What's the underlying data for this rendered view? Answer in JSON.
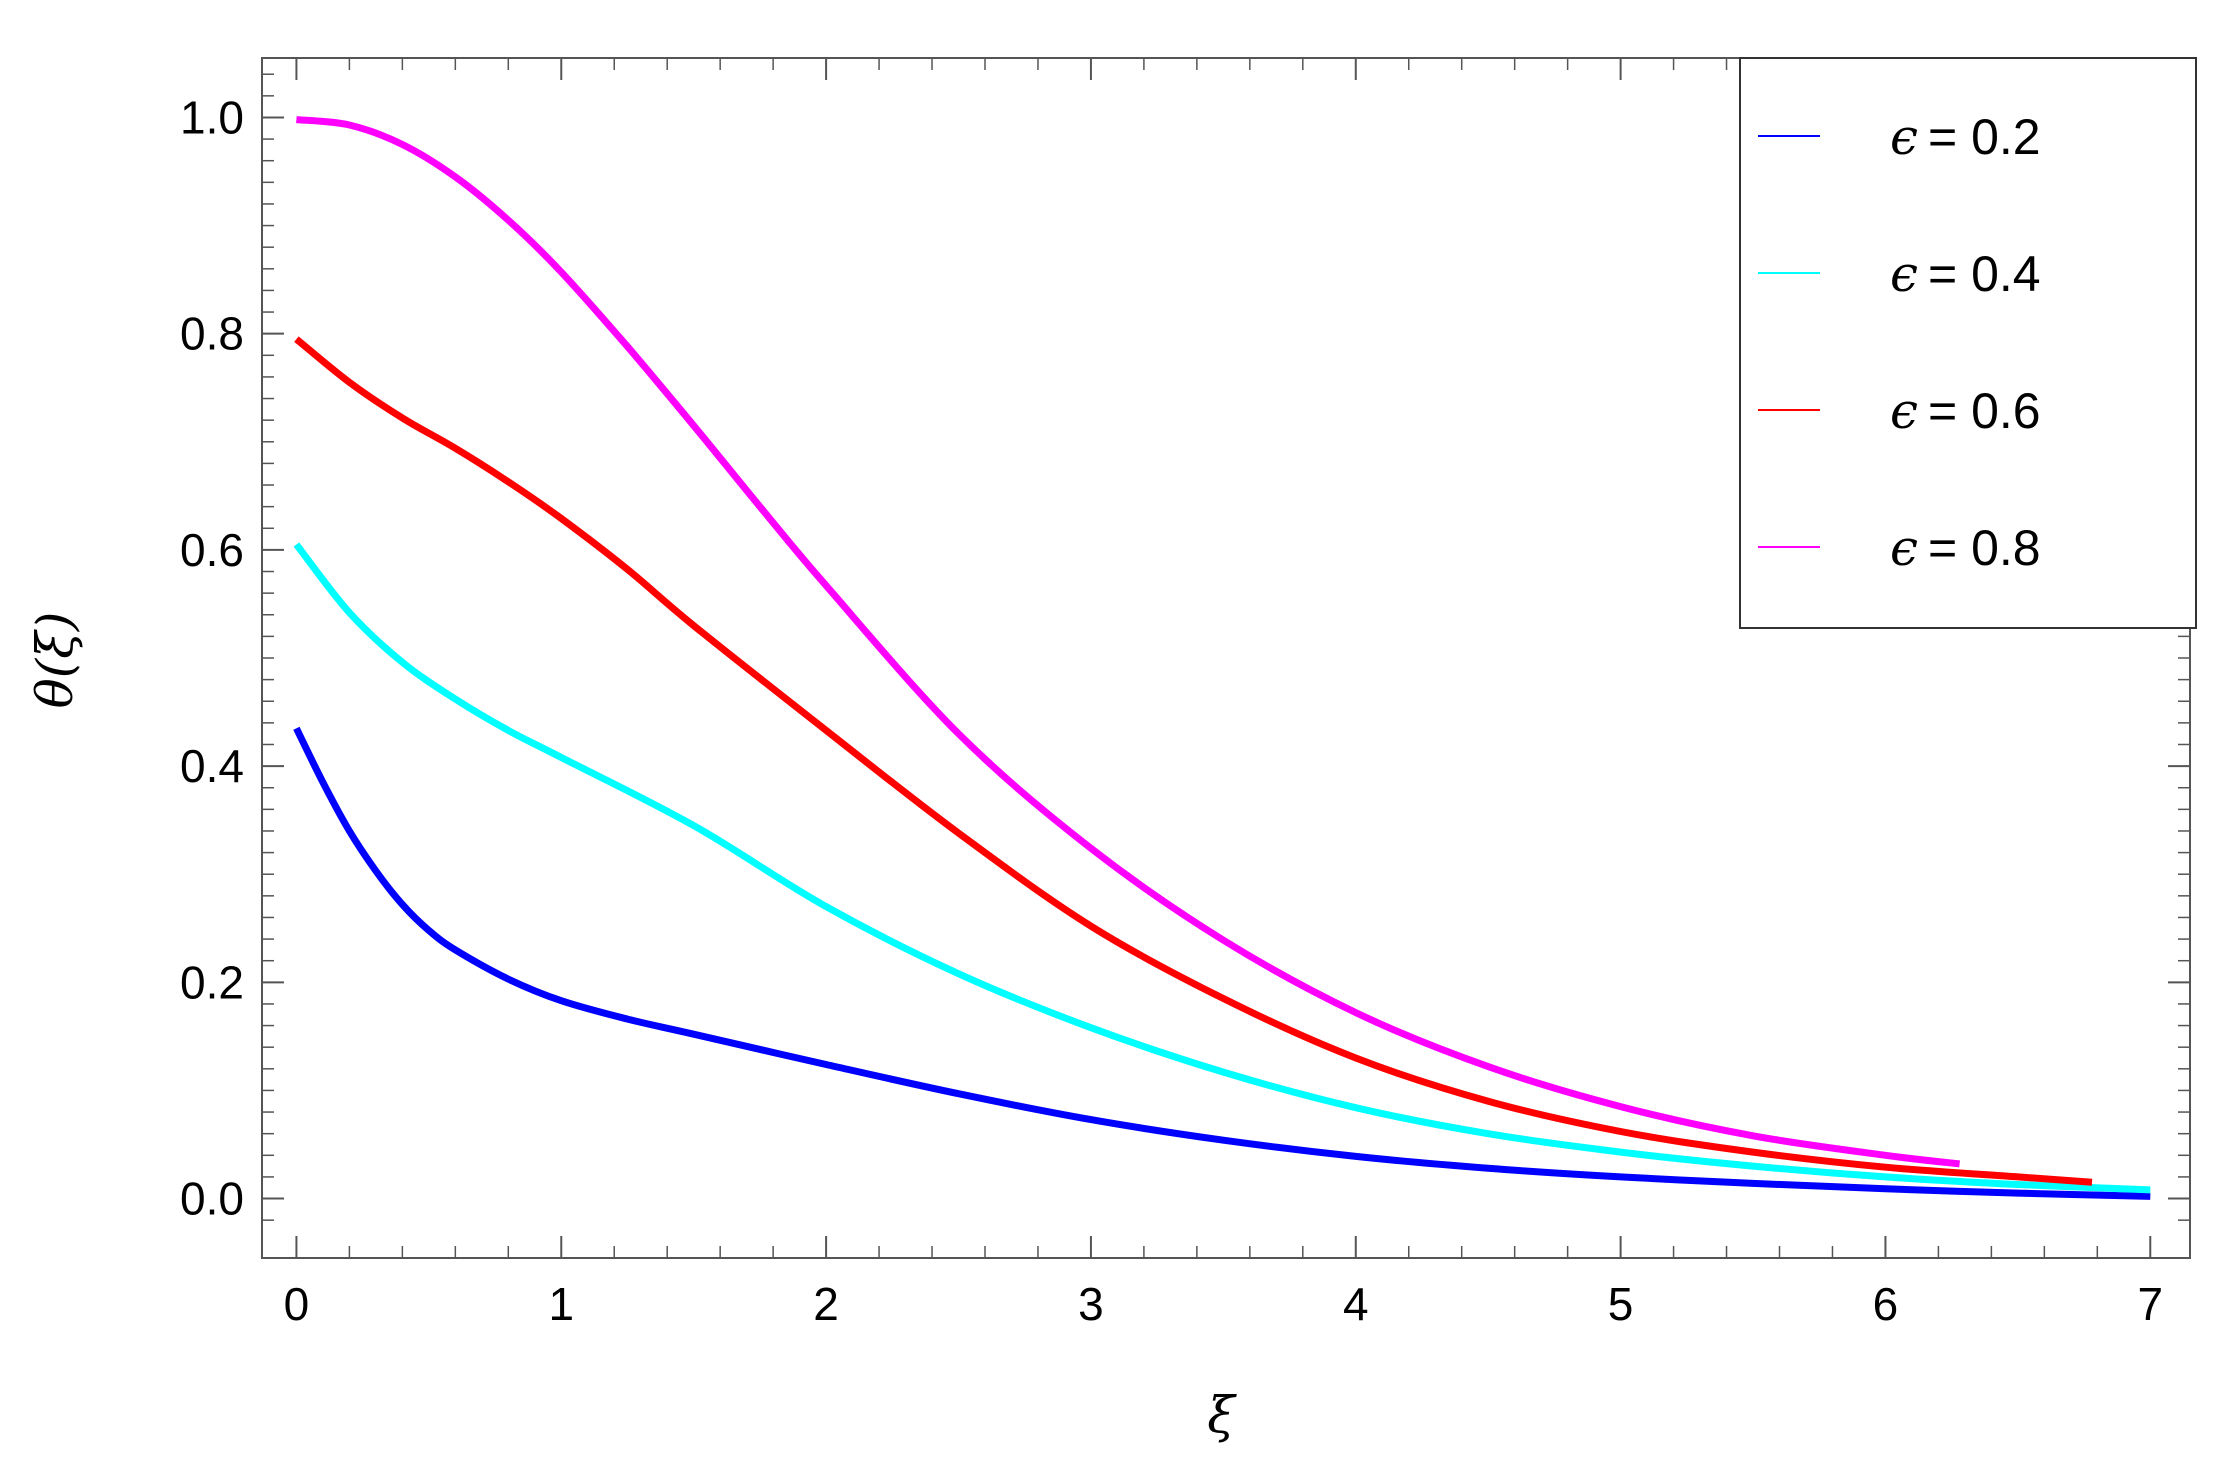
{
  "chart_data": {
    "type": "line",
    "xlabel": "ξ",
    "ylabel": "θ(ξ)",
    "xlim": [
      -0.13,
      7.15
    ],
    "ylim": [
      -0.055,
      1.055
    ],
    "x_ticks": [
      0,
      1,
      2,
      3,
      4,
      5,
      6,
      7
    ],
    "x_tick_labels": [
      "0",
      "1",
      "2",
      "3",
      "4",
      "5",
      "6",
      "7"
    ],
    "y_ticks": [
      0.0,
      0.2,
      0.4,
      0.6,
      0.8,
      1.0
    ],
    "y_tick_labels": [
      "0.0",
      "0.2",
      "0.4",
      "0.6",
      "0.8",
      "1.0"
    ],
    "grid": false,
    "legend_position": "top-right",
    "series": [
      {
        "name": "ϵ = 0.2",
        "legend_symbol": "ϵ",
        "legend_value": "= 0.2",
        "color": "#0000ff",
        "x": [
          0,
          0.1,
          0.2,
          0.3,
          0.4,
          0.5,
          0.6,
          0.8,
          1,
          1.25,
          1.5,
          2,
          2.5,
          3,
          3.5,
          4,
          4.5,
          5,
          5.5,
          6,
          6.5,
          7
        ],
        "y": [
          0.435,
          0.385,
          0.34,
          0.303,
          0.272,
          0.248,
          0.23,
          0.203,
          0.183,
          0.166,
          0.152,
          0.124,
          0.097,
          0.073,
          0.054,
          0.039,
          0.028,
          0.02,
          0.014,
          0.009,
          0.005,
          0.002
        ]
      },
      {
        "name": "ϵ = 0.4",
        "legend_symbol": "ϵ",
        "legend_value": "= 0.4",
        "color": "#00ffff",
        "x": [
          0,
          0.2,
          0.4,
          0.6,
          0.8,
          1,
          1.5,
          2,
          2.5,
          3,
          3.5,
          4,
          4.5,
          5,
          5.5,
          6,
          6.5,
          7
        ],
        "y": [
          0.605,
          0.542,
          0.496,
          0.462,
          0.433,
          0.408,
          0.345,
          0.27,
          0.208,
          0.158,
          0.117,
          0.084,
          0.06,
          0.043,
          0.03,
          0.02,
          0.013,
          0.008
        ]
      },
      {
        "name": "ϵ = 0.6",
        "legend_symbol": "ϵ",
        "legend_value": "= 0.6",
        "color": "#ff0000",
        "x": [
          0,
          0.2,
          0.4,
          0.6,
          0.8,
          1,
          1.25,
          1.5,
          2,
          2.5,
          3,
          3.5,
          4,
          4.5,
          5,
          5.5,
          6,
          6.5,
          6.78
        ],
        "y": [
          0.795,
          0.755,
          0.722,
          0.694,
          0.663,
          0.629,
          0.582,
          0.53,
          0.433,
          0.338,
          0.252,
          0.185,
          0.13,
          0.09,
          0.062,
          0.043,
          0.029,
          0.02,
          0.015
        ]
      },
      {
        "name": "ϵ = 0.8",
        "legend_symbol": "ϵ",
        "legend_value": "= 0.8",
        "color": "#ff00ff",
        "x": [
          0,
          0.2,
          0.4,
          0.6,
          0.8,
          1,
          1.25,
          1.5,
          1.75,
          2,
          2.5,
          3,
          3.5,
          4,
          4.5,
          5,
          5.5,
          6,
          6.28
        ],
        "y": [
          0.998,
          0.993,
          0.975,
          0.945,
          0.905,
          0.857,
          0.788,
          0.715,
          0.64,
          0.567,
          0.43,
          0.324,
          0.239,
          0.172,
          0.122,
          0.085,
          0.058,
          0.04,
          0.032
        ]
      }
    ]
  }
}
